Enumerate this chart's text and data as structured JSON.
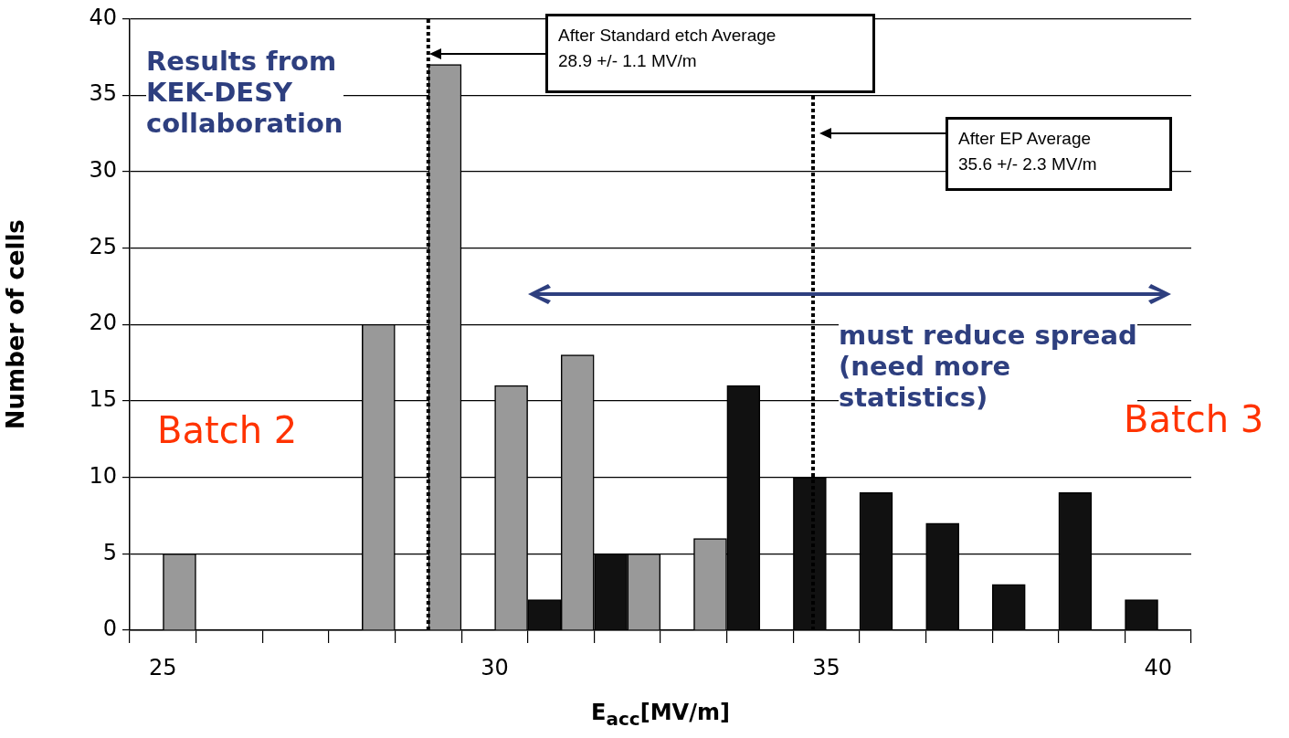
{
  "chart_data": {
    "type": "bar",
    "xlabel": "E$_{acc}$[MV/m]",
    "ylabel": "Number of cells",
    "series": [
      {
        "color": "#111111",
        "x": [
          30.75,
          31.75,
          33.75,
          34.75,
          35.75,
          36.75,
          37.75,
          38.75,
          39.75
        ],
        "values": [
          2,
          5,
          16,
          10,
          9,
          7,
          3,
          9,
          2
        ]
      },
      {
        "color": "#999999",
        "x": [
          25.25,
          28.25,
          29.25,
          30.25,
          31.25,
          32.25,
          33.25
        ],
        "values": [
          5,
          20,
          37,
          16,
          18,
          5,
          6
        ]
      }
    ],
    "xlim": [
      24.5,
      40.5
    ],
    "xticks": [
      {
        "value": 24.5,
        "label": null
      },
      25,
      {
        "value": 25.5,
        "label": null
      },
      {
        "value": 26.5,
        "label": null
      },
      {
        "value": 27.5,
        "label": null
      },
      {
        "value": 28.5,
        "label": null
      },
      {
        "value": 29.5,
        "label": null
      },
      30,
      {
        "value": 30.5,
        "label": null
      },
      {
        "value": 31.5,
        "label": null
      },
      {
        "value": 32.5,
        "label": null
      },
      {
        "value": 33.5,
        "label": null
      },
      {
        "value": 34.5,
        "label": null
      },
      35,
      {
        "value": 35.5,
        "label": null
      },
      {
        "value": 36.5,
        "label": null
      },
      {
        "value": 37.5,
        "label": null
      },
      {
        "value": 38.5,
        "label": null
      },
      {
        "value": 39.5,
        "label": null
      },
      40,
      {
        "value": 40.5,
        "label": null
      }
    ],
    "ylim": [
      0,
      40
    ],
    "yticks": [
      0,
      5,
      10,
      15,
      20,
      25,
      30,
      35,
      40
    ],
    "grid": "y",
    "legend": false,
    "ref_lines": [
      {
        "axis": "x",
        "value": 29.0,
        "color": "#000000",
        "line_style": "dotted"
      },
      {
        "axis": "x",
        "value": 34.8,
        "color": "#000000",
        "line_style": "dotted"
      }
    ],
    "annotations": [
      "After Standard etch Average\n28.9 +/- 1.1 MV/m",
      "After EP Average\n35.6 +/- 2.3 MV/m",
      "Results from\nKEK-DESY\ncollaboration",
      "must reduce spread\n(need more\nstatistics)",
      "Batch 2",
      "Batch 3"
    ]
  }
}
